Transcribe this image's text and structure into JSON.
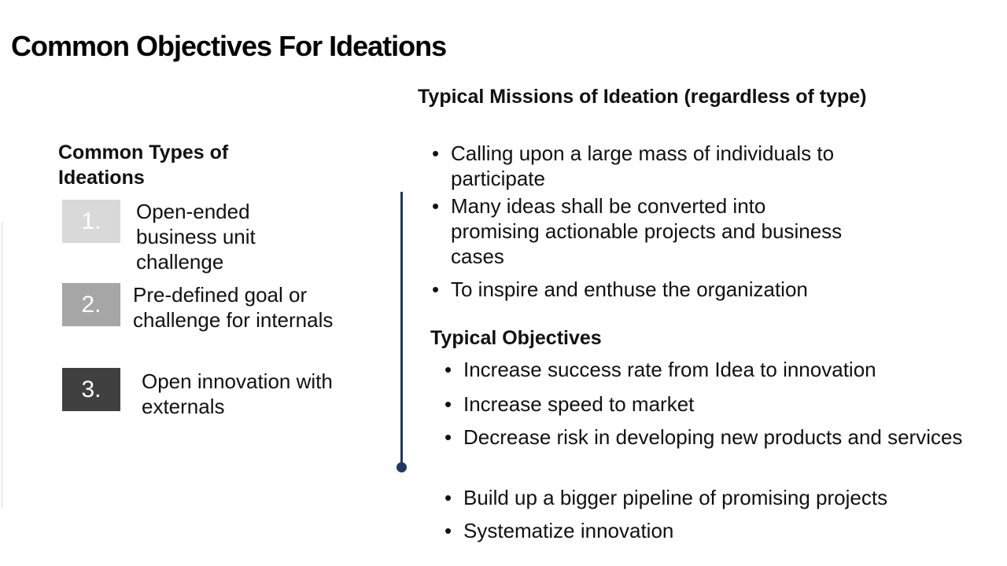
{
  "title": "Common Objectives For Ideations",
  "left": {
    "heading": "Common Types of Ideations",
    "types": [
      {
        "number": "1.",
        "text": "Open-ended business unit challenge",
        "box_color": "#d9d9d9"
      },
      {
        "number": "2.",
        "text": "Pre-defined goal or challenge for internals",
        "box_color": "#a6a6a6"
      },
      {
        "number": "3.",
        "text": "Open innovation with externals",
        "box_color": "#404040"
      }
    ]
  },
  "right": {
    "missions_heading": "Typical Missions of Ideation (regardless of type)",
    "missions": [
      "Calling upon a large mass of individuals to participate",
      "Many ideas shall be converted into promising  actionable projects and business cases",
      "To inspire and enthuse the organization"
    ],
    "objectives_heading": "Typical Objectives",
    "objectives": [
      "Increase success rate from Idea to innovation",
      "Increase speed to market",
      "Decrease risk in developing new products and services",
      "Build up a bigger pipeline of promising projects",
      "Systematize innovation"
    ]
  },
  "colors": {
    "divider": "#1f3864",
    "text": "#111111"
  }
}
